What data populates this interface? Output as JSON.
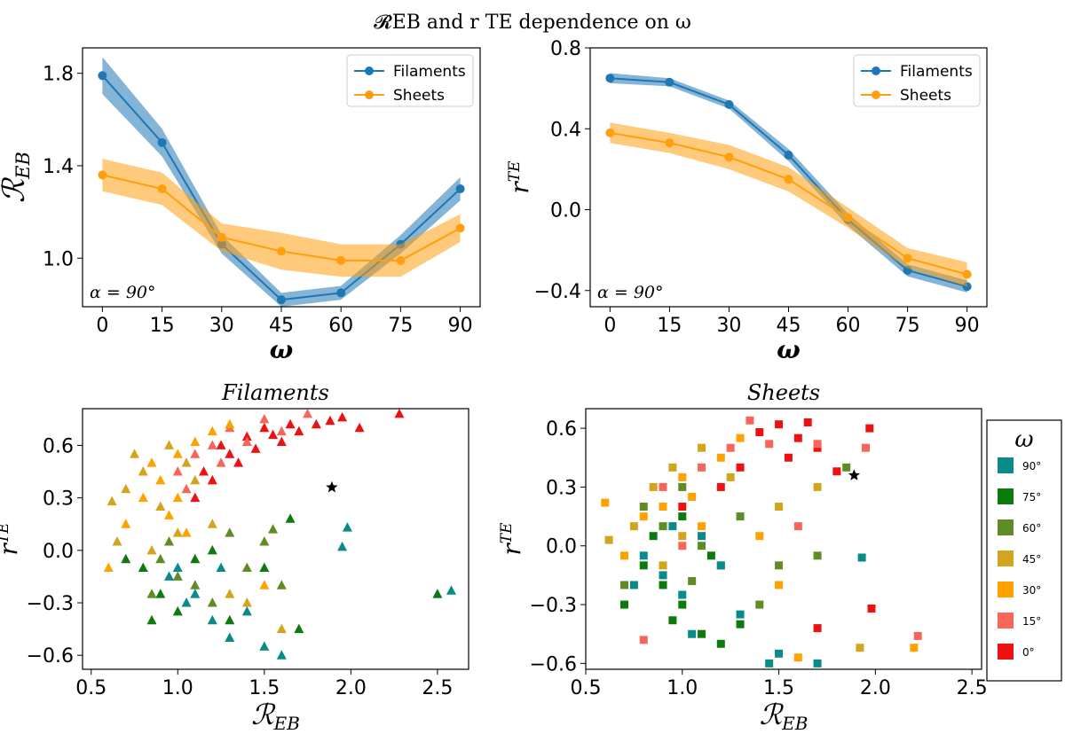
{
  "figure_title": "𝓡EB and r TE dependence on ω",
  "chart_data": [
    {
      "type": "line",
      "xlabel": "ω",
      "ylabel": "𝓡EB",
      "xlim": [
        -5,
        95
      ],
      "ylim": [
        0.79,
        1.91
      ],
      "xticks": [
        0,
        15,
        30,
        45,
        60,
        75,
        90
      ],
      "yticks": [
        1.0,
        1.4,
        1.8
      ],
      "ytick_labels": [
        "1.0",
        "1.4",
        "1.8"
      ],
      "annotation": "α = 90°",
      "legend": "top-right",
      "x": [
        0,
        15,
        30,
        45,
        60,
        75,
        90
      ],
      "series": [
        {
          "name": "Filaments",
          "color": "#1f77b4",
          "values": [
            1.79,
            1.5,
            1.06,
            0.82,
            0.85,
            1.06,
            1.3
          ],
          "band": [
            0.08,
            0.06,
            0.04,
            0.03,
            0.03,
            0.04,
            0.05
          ]
        },
        {
          "name": "Sheets",
          "color": "#ff9f0e",
          "values": [
            1.36,
            1.3,
            1.09,
            1.03,
            0.99,
            0.99,
            1.13
          ],
          "band": [
            0.07,
            0.07,
            0.06,
            0.08,
            0.07,
            0.07,
            0.06
          ]
        }
      ]
    },
    {
      "type": "line",
      "xlabel": "ω",
      "ylabel": "r TE",
      "xlim": [
        -5,
        95
      ],
      "ylim": [
        -0.48,
        0.8
      ],
      "xticks": [
        0,
        15,
        30,
        45,
        60,
        75,
        90
      ],
      "yticks": [
        -0.4,
        0.0,
        0.4,
        0.8
      ],
      "ytick_labels": [
        "−0.4",
        "0.0",
        "0.4",
        "0.8"
      ],
      "annotation": "α = 90°",
      "legend": "top-right",
      "x": [
        0,
        15,
        30,
        45,
        60,
        75,
        90
      ],
      "series": [
        {
          "name": "Filaments",
          "color": "#1f77b4",
          "values": [
            0.65,
            0.63,
            0.52,
            0.27,
            -0.05,
            -0.3,
            -0.38
          ],
          "band": [
            0.025,
            0.02,
            0.02,
            0.03,
            0.03,
            0.03,
            0.03
          ]
        },
        {
          "name": "Sheets",
          "color": "#ff9f0e",
          "values": [
            0.38,
            0.33,
            0.26,
            0.15,
            -0.04,
            -0.24,
            -0.32
          ],
          "band": [
            0.05,
            0.05,
            0.06,
            0.06,
            0.05,
            0.05,
            0.06
          ]
        }
      ]
    },
    {
      "type": "scatter",
      "title": "Filaments",
      "marker": "triangle",
      "xlabel": "𝓡EB",
      "ylabel": "r TE",
      "xlim": [
        0.45,
        2.68
      ],
      "ylim": [
        -0.68,
        0.81
      ],
      "xticks": [
        0.5,
        1.0,
        1.5,
        2.0,
        2.5
      ],
      "yticks": [
        -0.6,
        -0.3,
        0.0,
        0.3,
        0.6
      ],
      "star": [
        1.89,
        0.36
      ],
      "points": [
        [
          1.7,
          0.68,
          0
        ],
        [
          1.8,
          0.72,
          0
        ],
        [
          1.88,
          0.74,
          0
        ],
        [
          2.05,
          0.7,
          0
        ],
        [
          2.28,
          0.78,
          0
        ],
        [
          1.95,
          0.76,
          0
        ],
        [
          1.6,
          0.62,
          0
        ],
        [
          1.4,
          0.65,
          0
        ],
        [
          1.3,
          0.55,
          0
        ],
        [
          1.2,
          0.4,
          0
        ],
        [
          1.25,
          0.6,
          0
        ],
        [
          1.35,
          0.5,
          0
        ],
        [
          1.5,
          0.7,
          0
        ],
        [
          1.1,
          0.3,
          0
        ],
        [
          1.45,
          0.58,
          0
        ],
        [
          1.55,
          0.66,
          0
        ],
        [
          1.15,
          0.45,
          0
        ],
        [
          1.65,
          0.72,
          0
        ],
        [
          1.4,
          0.62,
          1
        ],
        [
          1.3,
          0.7,
          1
        ],
        [
          1.2,
          0.6,
          1
        ],
        [
          1.1,
          0.55,
          1
        ],
        [
          1.0,
          0.45,
          1
        ],
        [
          1.5,
          0.75,
          1
        ],
        [
          1.05,
          0.35,
          1
        ],
        [
          1.6,
          0.68,
          1
        ],
        [
          1.25,
          0.5,
          1
        ],
        [
          1.75,
          0.78,
          1
        ],
        [
          0.9,
          0.4,
          2
        ],
        [
          1.0,
          0.55,
          2
        ],
        [
          1.1,
          0.62,
          2
        ],
        [
          0.8,
          0.3,
          2
        ],
        [
          0.95,
          0.2,
          2
        ],
        [
          1.2,
          0.68,
          2
        ],
        [
          0.7,
          0.15,
          2
        ],
        [
          1.05,
          0.1,
          2
        ],
        [
          0.85,
          0.5,
          2
        ],
        [
          0.6,
          -0.1,
          2
        ],
        [
          1.3,
          0.72,
          2
        ],
        [
          1.5,
          -0.2,
          2
        ],
        [
          1.0,
          0.3,
          2
        ],
        [
          0.8,
          0.45,
          3
        ],
        [
          0.7,
          0.35,
          3
        ],
        [
          0.9,
          0.25,
          3
        ],
        [
          1.0,
          0.1,
          3
        ],
        [
          0.65,
          0.05,
          3
        ],
        [
          1.1,
          0.4,
          3
        ],
        [
          0.75,
          0.55,
          3
        ],
        [
          0.95,
          0.6,
          3
        ],
        [
          1.2,
          0.15,
          3
        ],
        [
          0.85,
          0.0,
          3
        ],
        [
          1.4,
          -0.3,
          3
        ],
        [
          1.6,
          -0.45,
          3
        ],
        [
          1.3,
          -0.25,
          3
        ],
        [
          0.62,
          0.28,
          3
        ],
        [
          1.05,
          0.5,
          3
        ],
        [
          0.9,
          -0.05,
          4
        ],
        [
          1.0,
          -0.15,
          4
        ],
        [
          1.1,
          -0.2,
          4
        ],
        [
          1.3,
          0.1,
          4
        ],
        [
          1.5,
          0.05,
          4
        ],
        [
          1.2,
          -0.3,
          4
        ],
        [
          1.4,
          -0.1,
          4
        ],
        [
          0.85,
          -0.25,
          4
        ],
        [
          1.6,
          -0.2,
          4
        ],
        [
          0.95,
          0.05,
          4
        ],
        [
          1.55,
          0.12,
          4
        ],
        [
          0.8,
          -0.1,
          5
        ],
        [
          0.9,
          -0.25,
          5
        ],
        [
          1.0,
          -0.35,
          5
        ],
        [
          1.1,
          -0.05,
          5
        ],
        [
          1.2,
          0.0,
          5
        ],
        [
          1.3,
          -0.4,
          5
        ],
        [
          0.7,
          -0.05,
          5
        ],
        [
          1.5,
          -0.1,
          5
        ],
        [
          1.7,
          -0.45,
          5
        ],
        [
          2.5,
          -0.25,
          5
        ],
        [
          1.65,
          0.18,
          5
        ],
        [
          0.85,
          -0.4,
          5
        ],
        [
          1.0,
          -0.1,
          6
        ],
        [
          1.1,
          -0.25,
          6
        ],
        [
          1.2,
          -0.4,
          6
        ],
        [
          1.3,
          -0.5,
          6
        ],
        [
          1.4,
          -0.35,
          6
        ],
        [
          1.5,
          -0.55,
          6
        ],
        [
          1.6,
          -0.6,
          6
        ],
        [
          0.95,
          -0.15,
          6
        ],
        [
          1.05,
          -0.3,
          6
        ],
        [
          1.95,
          0.02,
          6
        ],
        [
          1.98,
          0.13,
          6
        ],
        [
          2.58,
          -0.23,
          6
        ],
        [
          1.25,
          -0.1,
          6
        ]
      ]
    },
    {
      "type": "scatter",
      "title": "Sheets",
      "marker": "square",
      "xlabel": "𝓡EB",
      "ylabel": "r TE",
      "xlim": [
        0.5,
        2.55
      ],
      "ylim": [
        -0.63,
        0.7
      ],
      "xticks": [
        0.5,
        1.0,
        1.5,
        2.0,
        2.5
      ],
      "yticks": [
        -0.6,
        -0.3,
        0.0,
        0.3,
        0.6
      ],
      "star": [
        1.89,
        0.36
      ],
      "points": [
        [
          1.5,
          0.62,
          0
        ],
        [
          1.6,
          0.55,
          0
        ],
        [
          1.7,
          0.5,
          0
        ],
        [
          1.8,
          0.38,
          0
        ],
        [
          1.97,
          0.6,
          0
        ],
        [
          1.3,
          0.4,
          0
        ],
        [
          1.4,
          0.58,
          0
        ],
        [
          1.2,
          0.3,
          0
        ],
        [
          1.0,
          0.2,
          0
        ],
        [
          1.55,
          0.45,
          0
        ],
        [
          1.65,
          0.63,
          0
        ],
        [
          1.98,
          -0.32,
          0
        ],
        [
          1.7,
          -0.42,
          0
        ],
        [
          1.35,
          0.64,
          1
        ],
        [
          1.25,
          0.5,
          1
        ],
        [
          1.1,
          0.4,
          1
        ],
        [
          0.9,
          0.3,
          1
        ],
        [
          0.8,
          -0.48,
          1
        ],
        [
          1.45,
          0.52,
          1
        ],
        [
          1.95,
          0.5,
          1
        ],
        [
          2.22,
          -0.46,
          1
        ],
        [
          1.6,
          0.1,
          1
        ],
        [
          1.0,
          0.0,
          1
        ],
        [
          1.7,
          0.52,
          1
        ],
        [
          1.2,
          0.45,
          2
        ],
        [
          1.0,
          0.35,
          2
        ],
        [
          0.9,
          0.2,
          2
        ],
        [
          1.1,
          0.1,
          2
        ],
        [
          1.3,
          0.55,
          2
        ],
        [
          0.8,
          0.15,
          2
        ],
        [
          0.7,
          -0.05,
          2
        ],
        [
          1.4,
          0.05,
          2
        ],
        [
          1.5,
          -0.2,
          2
        ],
        [
          2.2,
          -0.52,
          2
        ],
        [
          1.6,
          -0.57,
          2
        ],
        [
          0.6,
          0.22,
          2
        ],
        [
          1.05,
          0.25,
          2
        ],
        [
          1.1,
          0.5,
          3
        ],
        [
          0.95,
          0.4,
          3
        ],
        [
          0.85,
          0.3,
          3
        ],
        [
          0.75,
          0.1,
          3
        ],
        [
          1.0,
          0.05,
          3
        ],
        [
          1.25,
          0.35,
          3
        ],
        [
          0.62,
          0.03,
          3
        ],
        [
          1.5,
          0.2,
          3
        ],
        [
          1.92,
          -0.52,
          3
        ],
        [
          1.7,
          0.3,
          3
        ],
        [
          0.9,
          -0.1,
          3
        ],
        [
          0.8,
          0.2,
          4
        ],
        [
          0.9,
          0.1,
          4
        ],
        [
          1.0,
          0.3,
          4
        ],
        [
          1.1,
          0.0,
          4
        ],
        [
          1.2,
          -0.1,
          4
        ],
        [
          1.3,
          0.15,
          4
        ],
        [
          1.5,
          -0.1,
          4
        ],
        [
          1.7,
          -0.05,
          4
        ],
        [
          1.85,
          0.4,
          4
        ],
        [
          0.7,
          -0.2,
          4
        ],
        [
          1.4,
          -0.3,
          4
        ],
        [
          1.05,
          -0.18,
          4
        ],
        [
          0.8,
          -0.1,
          5
        ],
        [
          0.9,
          -0.2,
          5
        ],
        [
          1.0,
          -0.3,
          5
        ],
        [
          1.1,
          -0.45,
          5
        ],
        [
          1.2,
          -0.5,
          5
        ],
        [
          0.7,
          -0.3,
          5
        ],
        [
          0.85,
          0.05,
          5
        ],
        [
          1.3,
          -0.4,
          5
        ],
        [
          1.0,
          0.15,
          5
        ],
        [
          1.15,
          -0.05,
          5
        ],
        [
          0.95,
          -0.38,
          5
        ],
        [
          0.8,
          -0.05,
          6
        ],
        [
          0.9,
          -0.15,
          6
        ],
        [
          1.0,
          -0.25,
          6
        ],
        [
          1.1,
          0.05,
          6
        ],
        [
          1.2,
          -0.1,
          6
        ],
        [
          0.75,
          -0.2,
          6
        ],
        [
          1.3,
          -0.35,
          6
        ],
        [
          1.45,
          -0.6,
          6
        ],
        [
          1.7,
          -0.6,
          6
        ],
        [
          1.93,
          -0.06,
          6
        ],
        [
          1.5,
          -0.55,
          6
        ],
        [
          0.95,
          0.1,
          6
        ],
        [
          1.05,
          -0.45,
          6
        ]
      ]
    }
  ],
  "colorbar_legend": {
    "title": "ω",
    "entries": [
      {
        "label": "90°",
        "color": "#0a8a8a"
      },
      {
        "label": "75°",
        "color": "#0d7a0d"
      },
      {
        "label": "60°",
        "color": "#5f8c25"
      },
      {
        "label": "45°",
        "color": "#d3a51e"
      },
      {
        "label": "30°",
        "color": "#ffa200"
      },
      {
        "label": "15°",
        "color": "#f8665a"
      },
      {
        "label": "0°",
        "color": "#ee1111"
      }
    ]
  },
  "omega_colors": [
    "#ee1111",
    "#f8665a",
    "#ffa200",
    "#d3a51e",
    "#5f8c25",
    "#0d7a0d",
    "#0a8a8a"
  ],
  "omega_bins": [
    "0°",
    "15°",
    "30°",
    "45°",
    "60°",
    "75°",
    "90°"
  ]
}
